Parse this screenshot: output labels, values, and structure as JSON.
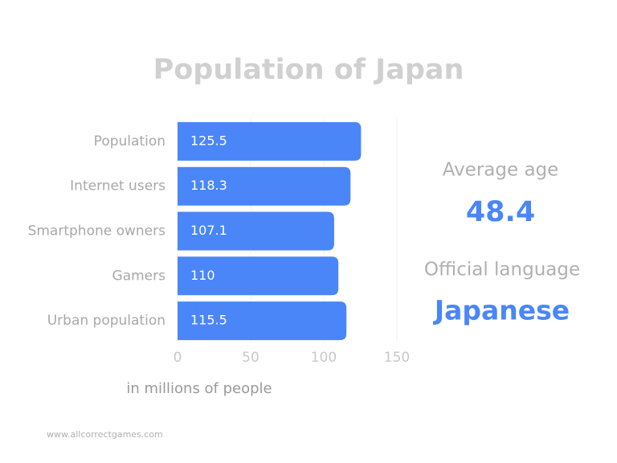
{
  "chart_data": {
    "type": "hbar",
    "title": "Population of Japan",
    "categories": [
      "Population",
      "Internet users",
      "Smartphone owners",
      "Gamers",
      "Urban population"
    ],
    "values": [
      125.5,
      118.3,
      107.1,
      110,
      115.5
    ],
    "color": "#4a86f7",
    "xlim": [
      0,
      150
    ],
    "xticks": [
      0,
      50,
      100,
      150
    ],
    "xlabel": "in millions of people"
  },
  "stats": [
    {
      "label": "Average age",
      "value": 48.4
    },
    {
      "label": "Official language",
      "value": "Japanese"
    }
  ],
  "footer": "www.allcorrectgames.com"
}
